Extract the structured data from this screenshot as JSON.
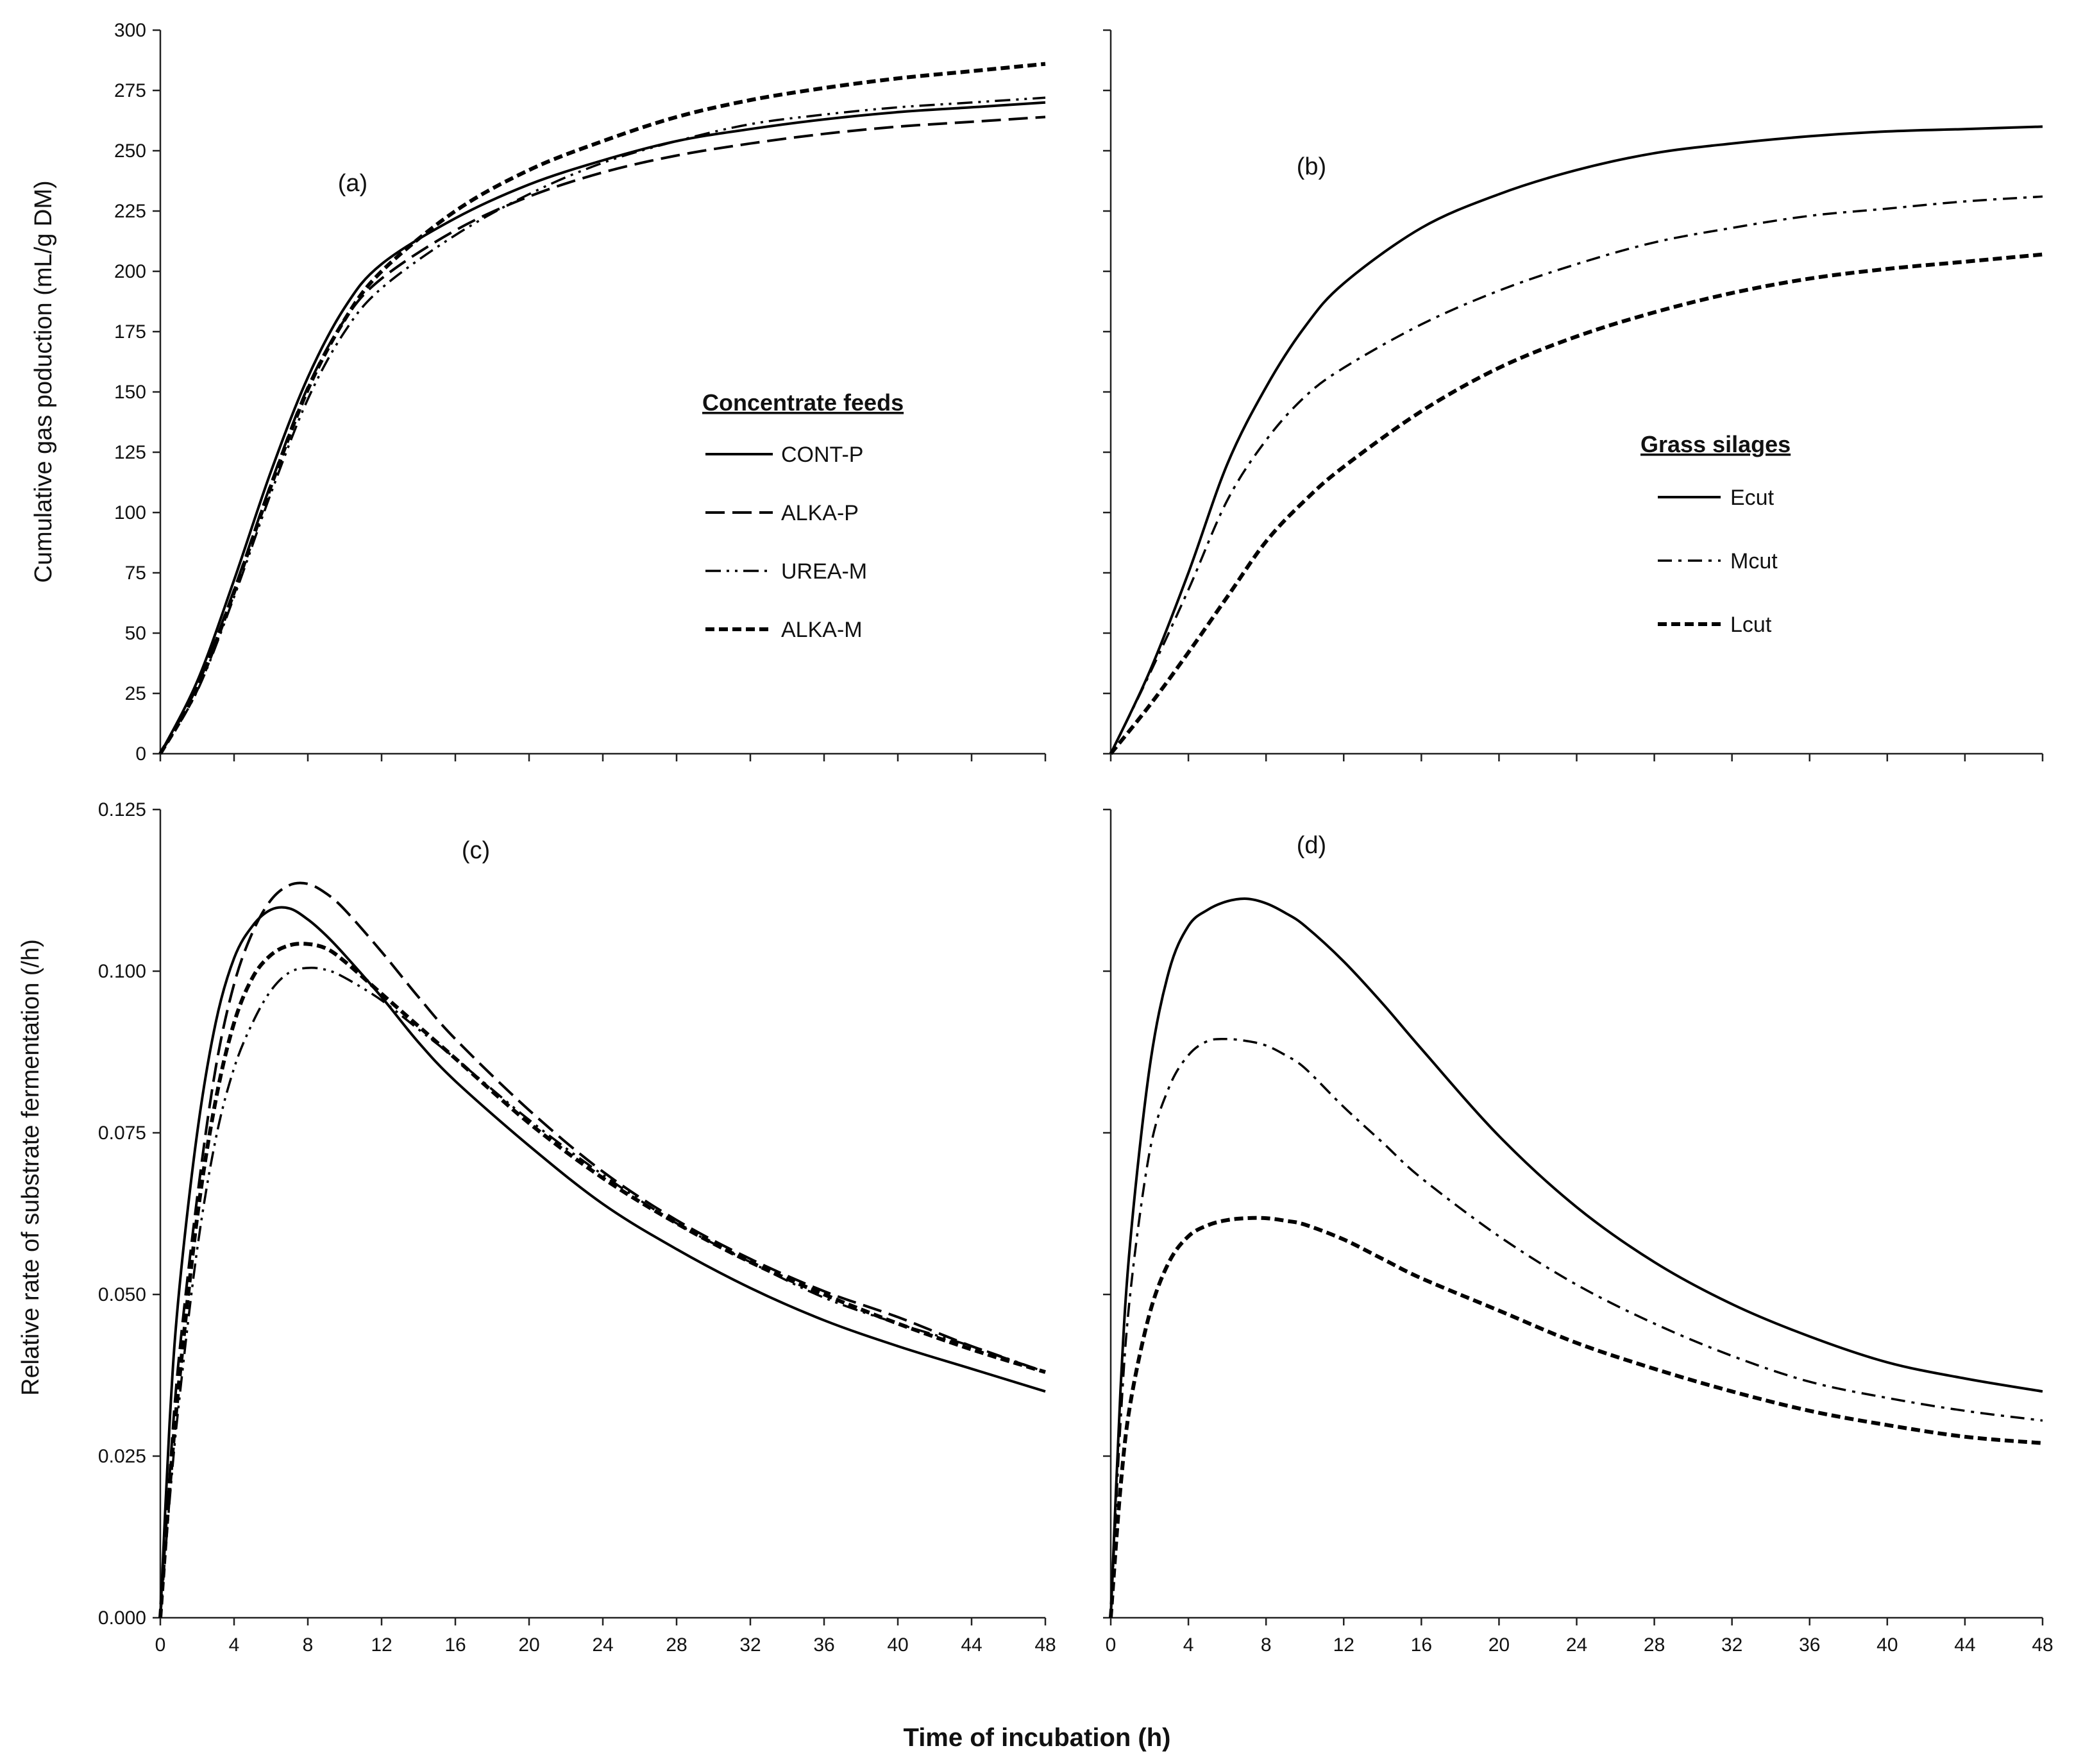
{
  "x_axis_title": "Time of incubation (h)",
  "chart_data": [
    {
      "id": "a",
      "panel_label": "(a)",
      "type": "line",
      "ylabel": "Cumulative gas poduction (mL/g DM)",
      "xlabel": "Time of incubation (h)",
      "xlim": [
        0,
        48
      ],
      "ylim": [
        0,
        300
      ],
      "xticks": [
        0,
        4,
        8,
        12,
        16,
        20,
        24,
        28,
        32,
        36,
        40,
        44,
        48
      ],
      "yticks": [
        0,
        25,
        50,
        75,
        100,
        125,
        150,
        175,
        200,
        225,
        250,
        275,
        300
      ],
      "ytick_labels": [
        "0",
        "25",
        "50",
        "75",
        "100",
        "125",
        "150",
        "175",
        "200",
        "225",
        "250",
        "275",
        "300"
      ],
      "legend_title": "Concentrate feeds",
      "x": [
        0,
        2,
        4,
        6,
        8,
        10,
        12,
        16,
        20,
        24,
        28,
        32,
        36,
        40,
        44,
        48
      ],
      "series": [
        {
          "name": "CONT-P",
          "style": "solid",
          "values": [
            0,
            30,
            72,
            117,
            156,
            185,
            203,
            222,
            236,
            246,
            254,
            259,
            263,
            266,
            268,
            270
          ]
        },
        {
          "name": "ALKA-P",
          "style": "dash",
          "values": [
            0,
            28,
            68,
            112,
            152,
            180,
            197,
            217,
            231,
            241,
            248,
            253,
            257,
            260,
            262,
            264
          ]
        },
        {
          "name": "UREA-M",
          "style": "dashdotdot",
          "values": [
            0,
            26,
            65,
            108,
            147,
            175,
            193,
            215,
            232,
            245,
            254,
            261,
            265,
            268,
            270,
            272
          ]
        },
        {
          "name": "ALKA-M",
          "style": "shortdash",
          "values": [
            0,
            27,
            67,
            111,
            151,
            180,
            200,
            225,
            242,
            254,
            264,
            271,
            276,
            280,
            283,
            286
          ]
        }
      ]
    },
    {
      "id": "b",
      "panel_label": "(b)",
      "type": "line",
      "xlabel": "Time of incubation (h)",
      "xlim": [
        0,
        48
      ],
      "ylim": [
        0,
        300
      ],
      "xticks": [
        0,
        4,
        8,
        12,
        16,
        20,
        24,
        28,
        32,
        36,
        40,
        44,
        48
      ],
      "yticks": [
        0,
        25,
        50,
        75,
        100,
        125,
        150,
        175,
        200,
        225,
        250,
        275,
        300
      ],
      "legend_title": "Grass silages",
      "x": [
        0,
        2,
        4,
        6,
        8,
        10,
        12,
        16,
        20,
        24,
        28,
        32,
        36,
        40,
        44,
        48
      ],
      "series": [
        {
          "name": "Ecut",
          "style": "solid",
          "values": [
            0,
            34,
            75,
            120,
            152,
            177,
            195,
            218,
            232,
            242,
            249,
            253,
            256,
            258,
            259,
            260
          ]
        },
        {
          "name": "Mcut",
          "style": "dashdot",
          "values": [
            0,
            33,
            68,
            105,
            130,
            148,
            160,
            178,
            192,
            203,
            212,
            218,
            223,
            226,
            229,
            231
          ]
        },
        {
          "name": "Lcut",
          "style": "shortdash",
          "values": [
            0,
            20,
            42,
            65,
            88,
            105,
            119,
            142,
            160,
            173,
            183,
            191,
            197,
            201,
            204,
            207
          ]
        }
      ]
    },
    {
      "id": "c",
      "panel_label": "(c)",
      "type": "line",
      "ylabel": "Relative rate of substrate fermentation (/h)",
      "xlabel": "Time of incubation (h)",
      "xlim": [
        0,
        48
      ],
      "ylim": [
        0,
        0.125
      ],
      "xticks": [
        0,
        4,
        8,
        12,
        16,
        20,
        24,
        28,
        32,
        36,
        40,
        44,
        48
      ],
      "yticks": [
        0,
        0.025,
        0.05,
        0.075,
        0.1,
        0.125
      ],
      "ytick_labels": [
        "0.000",
        "0.025",
        "0.050",
        "0.075",
        "0.100",
        "0.125"
      ],
      "x": [
        0,
        0.5,
        1,
        2,
        3,
        4,
        5,
        6,
        7,
        8,
        9,
        10,
        12,
        14,
        16,
        20,
        24,
        28,
        32,
        36,
        40,
        44,
        48
      ],
      "series": [
        {
          "name": "CONT-P",
          "style": "solid",
          "values": [
            0,
            0.03,
            0.05,
            0.075,
            0.092,
            0.102,
            0.107,
            0.1095,
            0.1097,
            0.108,
            0.1055,
            0.1025,
            0.096,
            0.089,
            0.083,
            0.073,
            0.064,
            0.057,
            0.051,
            0.046,
            0.042,
            0.0385,
            0.035
          ]
        },
        {
          "name": "ALKA-P",
          "style": "dash",
          "values": [
            0,
            0.022,
            0.04,
            0.065,
            0.085,
            0.098,
            0.106,
            0.111,
            0.1133,
            0.1135,
            0.112,
            0.1095,
            0.103,
            0.096,
            0.0895,
            0.0785,
            0.069,
            0.0615,
            0.0555,
            0.0505,
            0.0465,
            0.042,
            0.038
          ]
        },
        {
          "name": "UREA-M",
          "style": "dashdotdot",
          "values": [
            0,
            0.018,
            0.033,
            0.057,
            0.074,
            0.085,
            0.092,
            0.097,
            0.0998,
            0.1005,
            0.1002,
            0.099,
            0.0955,
            0.091,
            0.0865,
            0.077,
            0.0685,
            0.061,
            0.055,
            0.0495,
            0.0455,
            0.042,
            0.038
          ]
        },
        {
          "name": "ALKA-M",
          "style": "shortdash",
          "values": [
            0,
            0.02,
            0.036,
            0.062,
            0.08,
            0.092,
            0.099,
            0.1025,
            0.104,
            0.1042,
            0.1035,
            0.1015,
            0.0965,
            0.0915,
            0.0865,
            0.0765,
            0.068,
            0.061,
            0.055,
            0.05,
            0.0455,
            0.0415,
            0.038
          ]
        }
      ]
    },
    {
      "id": "d",
      "panel_label": "(d)",
      "type": "line",
      "xlabel": "Time of incubation (h)",
      "xlim": [
        0,
        48
      ],
      "ylim": [
        0,
        0.125
      ],
      "xticks": [
        0,
        4,
        8,
        12,
        16,
        20,
        24,
        28,
        32,
        36,
        40,
        44,
        48
      ],
      "yticks": [
        0,
        0.025,
        0.05,
        0.075,
        0.1,
        0.125
      ],
      "x": [
        0,
        0.5,
        1,
        2,
        3,
        4,
        5,
        6,
        7,
        8,
        9,
        10,
        12,
        14,
        16,
        20,
        24,
        28,
        32,
        36,
        40,
        44,
        48
      ],
      "series": [
        {
          "name": "Ecut",
          "style": "solid",
          "values": [
            0,
            0.035,
            0.058,
            0.085,
            0.1,
            0.107,
            0.1095,
            0.1108,
            0.1112,
            0.1105,
            0.109,
            0.107,
            0.1015,
            0.095,
            0.088,
            0.0745,
            0.0635,
            0.055,
            0.0485,
            0.0435,
            0.0395,
            0.037,
            0.035
          ]
        },
        {
          "name": "Mcut",
          "style": "dashdot",
          "values": [
            0,
            0.03,
            0.05,
            0.072,
            0.082,
            0.087,
            0.0892,
            0.0895,
            0.0892,
            0.0885,
            0.087,
            0.085,
            0.079,
            0.0735,
            0.068,
            0.059,
            0.0515,
            0.0455,
            0.0405,
            0.0365,
            0.034,
            0.032,
            0.0305
          ]
        },
        {
          "name": "Lcut",
          "style": "shortdash",
          "values": [
            0,
            0.02,
            0.033,
            0.047,
            0.055,
            0.059,
            0.0607,
            0.0615,
            0.0618,
            0.0618,
            0.0614,
            0.0608,
            0.0585,
            0.0555,
            0.0525,
            0.0475,
            0.0425,
            0.0385,
            0.035,
            0.032,
            0.0298,
            0.028,
            0.027
          ]
        }
      ]
    }
  ]
}
